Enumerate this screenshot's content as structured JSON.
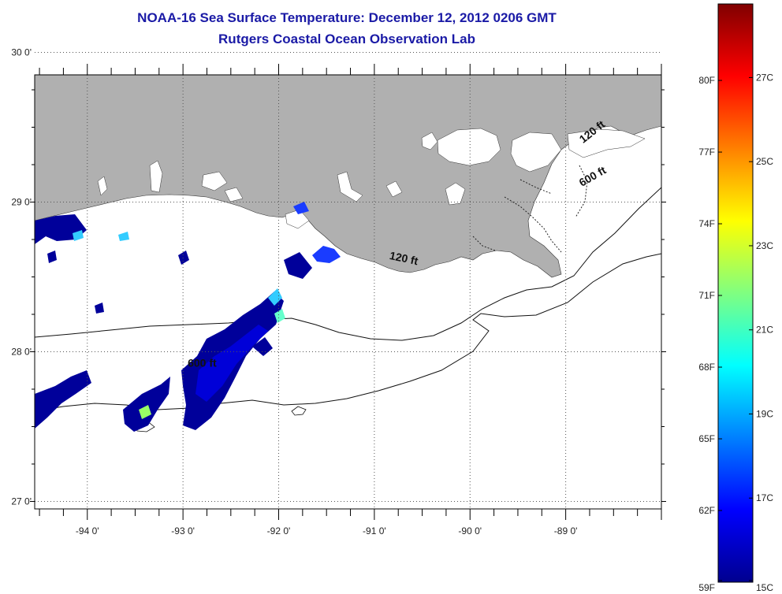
{
  "title": {
    "line1": "NOAA-16 Sea Surface Temperature:  December 12, 2012 0206 GMT",
    "line2": "Rutgers Coastal Ocean Observation Lab"
  },
  "map": {
    "lon_range": [
      -94.55,
      -88.0
    ],
    "lat_range": [
      26.95,
      29.85
    ],
    "lon_ticks": [
      {
        "value": -94,
        "label": "-94 0'"
      },
      {
        "value": -93,
        "label": "-93 0'"
      },
      {
        "value": -92,
        "label": "-92 0'"
      },
      {
        "value": -91,
        "label": "-91 0'"
      },
      {
        "value": -90,
        "label": "-90 0'"
      },
      {
        "value": -89,
        "label": "-89 0'"
      }
    ],
    "lat_ticks": [
      {
        "value": 30,
        "label": "30 0'"
      },
      {
        "value": 29,
        "label": "29 0'"
      },
      {
        "value": 28,
        "label": "28 0'"
      },
      {
        "value": 27,
        "label": "27 0'"
      }
    ],
    "land_color": "#b0b0b0",
    "ocean_color": "#ffffff",
    "contours": [
      {
        "label": "120 ft",
        "label_lon": -90.7,
        "label_lat": 28.6
      },
      {
        "label": "600 ft",
        "label_lon": -92.8,
        "label_lat": 27.9
      },
      {
        "label": "120 ft",
        "label_lon": -88.7,
        "label_lat": 29.45
      },
      {
        "label": "600 ft",
        "label_lon": -88.7,
        "label_lat": 29.15
      }
    ]
  },
  "colorbar": {
    "left_labels": [
      "80F",
      "77F",
      "74F",
      "71F",
      "68F",
      "65F",
      "62F",
      "59F"
    ],
    "right_labels": [
      "27C",
      "25C",
      "23C",
      "21C",
      "19C",
      "17C",
      "15C"
    ],
    "colors": [
      "#00008f",
      "#0000ff",
      "#0080ff",
      "#00ffff",
      "#80ff80",
      "#ffff00",
      "#ff8000",
      "#ff0000",
      "#800000"
    ]
  }
}
